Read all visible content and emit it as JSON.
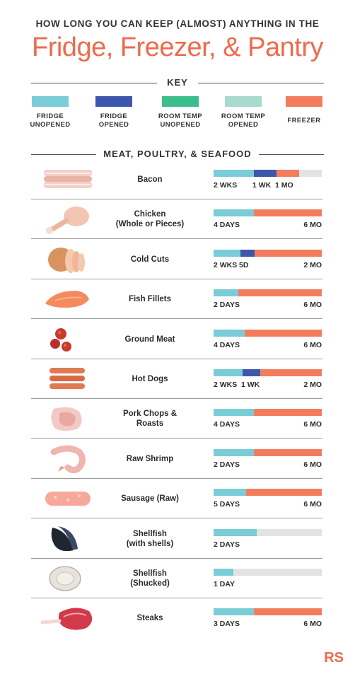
{
  "header": {
    "supertitle": "HOW LONG YOU CAN KEEP (ALMOST) ANYTHING IN THE",
    "title": "Fridge, Freezer, & Pantry"
  },
  "key": {
    "heading": "KEY",
    "items": [
      {
        "label": "FRIDGE\nUNOPENED",
        "color": "#7accd6"
      },
      {
        "label": "FRIDGE\nOPENED",
        "color": "#3d57ad"
      },
      {
        "label": "ROOM TEMP\nUNOPENED",
        "color": "#3bbd8c"
      },
      {
        "label": "ROOM TEMP\nOPENED",
        "color": "#a8dacd"
      },
      {
        "label": "FREEZER",
        "color": "#f47c5e"
      }
    ]
  },
  "section": {
    "heading": "MEAT, POULTRY, & SEAFOOD",
    "rows": [
      {
        "name": "Bacon",
        "icon": "bacon-icon",
        "segments": [
          {
            "kind": "fridge_unopened",
            "fraction": 0.37
          },
          {
            "kind": "fridge_opened",
            "fraction": 0.21
          },
          {
            "kind": "freezer",
            "fraction": 0.21
          }
        ],
        "ticks": [
          "2 WKS",
          "1 WK",
          "1 MO"
        ]
      },
      {
        "name": "Chicken\n(Whole or Pieces)",
        "icon": "chicken-leg-icon",
        "segments": [
          {
            "kind": "fridge_unopened",
            "fraction": 0.37
          },
          {
            "kind": "freezer",
            "fraction": 0.63
          }
        ],
        "ticks": [
          "4 DAYS",
          "6 MO"
        ]
      },
      {
        "name": "Cold Cuts",
        "icon": "cold-cuts-icon",
        "segments": [
          {
            "kind": "fridge_unopened",
            "fraction": 0.25
          },
          {
            "kind": "fridge_opened",
            "fraction": 0.13
          },
          {
            "kind": "freezer",
            "fraction": 0.62
          }
        ],
        "ticks": [
          "2 WKS",
          "5D",
          "2 MO"
        ]
      },
      {
        "name": "Fish Fillets",
        "icon": "fish-fillet-icon",
        "segments": [
          {
            "kind": "fridge_unopened",
            "fraction": 0.23
          },
          {
            "kind": "freezer",
            "fraction": 0.77
          }
        ],
        "ticks": [
          "2 DAYS",
          "6 MO"
        ]
      },
      {
        "name": "Ground Meat",
        "icon": "ground-meat-icon",
        "segments": [
          {
            "kind": "fridge_unopened",
            "fraction": 0.29
          },
          {
            "kind": "freezer",
            "fraction": 0.71
          }
        ],
        "ticks": [
          "4 DAYS",
          "6 MO"
        ]
      },
      {
        "name": "Hot Dogs",
        "icon": "hot-dogs-icon",
        "segments": [
          {
            "kind": "fridge_unopened",
            "fraction": 0.27
          },
          {
            "kind": "fridge_opened",
            "fraction": 0.16
          },
          {
            "kind": "freezer",
            "fraction": 0.57
          }
        ],
        "ticks": [
          "2 WKS",
          "1 WK",
          "2 MO"
        ]
      },
      {
        "name": "Pork Chops &\nRoasts",
        "icon": "pork-chop-icon",
        "segments": [
          {
            "kind": "fridge_unopened",
            "fraction": 0.37
          },
          {
            "kind": "freezer",
            "fraction": 0.63
          }
        ],
        "ticks": [
          "4 DAYS",
          "6 MO"
        ]
      },
      {
        "name": "Raw Shrimp",
        "icon": "shrimp-icon",
        "segments": [
          {
            "kind": "fridge_unopened",
            "fraction": 0.37
          },
          {
            "kind": "freezer",
            "fraction": 0.63
          }
        ],
        "ticks": [
          "2 DAYS",
          "6 MO"
        ]
      },
      {
        "name": "Sausage (Raw)",
        "icon": "sausage-icon",
        "segments": [
          {
            "kind": "fridge_unopened",
            "fraction": 0.3
          },
          {
            "kind": "freezer",
            "fraction": 0.7
          }
        ],
        "ticks": [
          "5 DAYS",
          "6 MO"
        ]
      },
      {
        "name": "Shellfish\n(with shells)",
        "icon": "mussel-icon",
        "segments": [
          {
            "kind": "fridge_unopened",
            "fraction": 0.4
          }
        ],
        "ticks": [
          "2 DAYS"
        ]
      },
      {
        "name": "Shellfish\n(Shucked)",
        "icon": "oyster-icon",
        "segments": [
          {
            "kind": "fridge_unopened",
            "fraction": 0.18
          }
        ],
        "ticks": [
          "1 DAY"
        ]
      },
      {
        "name": "Steaks",
        "icon": "steak-icon",
        "segments": [
          {
            "kind": "fridge_unopened",
            "fraction": 0.37
          },
          {
            "kind": "freezer",
            "fraction": 0.63
          }
        ],
        "ticks": [
          "3 DAYS",
          "6 MO"
        ]
      }
    ]
  },
  "brand": {
    "logo": "RS"
  }
}
